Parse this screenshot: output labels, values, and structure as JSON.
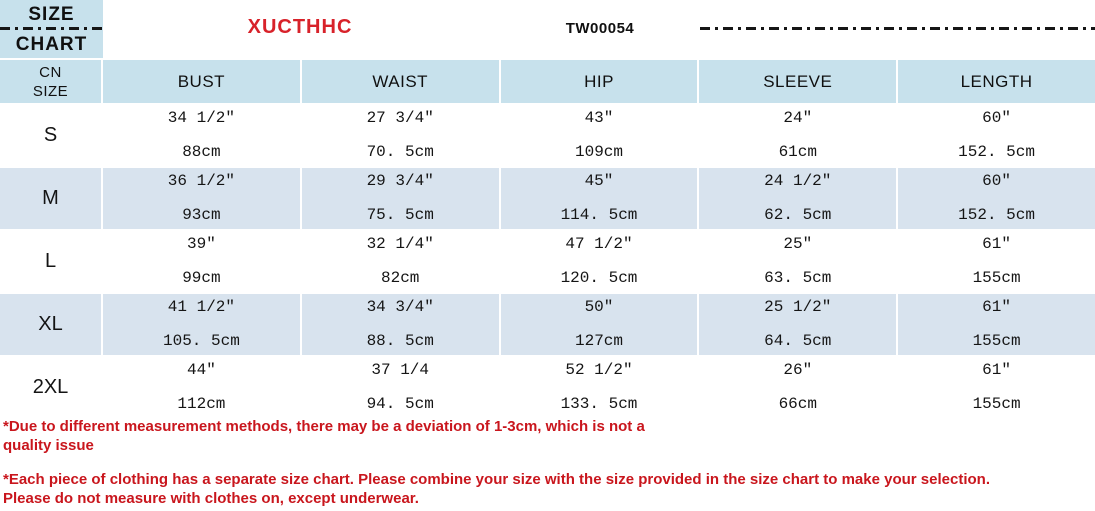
{
  "header": {
    "corner_line1": "SIZE",
    "corner_line2": "CHART",
    "brand": "XUCTHHC",
    "sku": "TW00054"
  },
  "colors": {
    "header_blue": "#c7e1ec",
    "row_blue": "#d8e3ee",
    "brand_red": "#d8222a",
    "note_red": "#c9161d",
    "line_black": "#161616"
  },
  "chart_data": {
    "type": "table",
    "title": "SIZE CHART",
    "label_header_line1": "CN",
    "label_header_line2": "SIZE",
    "columns": [
      "BUST",
      "WAIST",
      "HIP",
      "SLEEVE",
      "LENGTH"
    ],
    "rows": [
      {
        "label": "S",
        "bust": {
          "in": "34 1/2″",
          "cm": "88cm"
        },
        "waist": {
          "in": "27 3/4″",
          "cm": "70. 5cm"
        },
        "hip": {
          "in": "43″",
          "cm": "109cm"
        },
        "sleeve": {
          "in": "24″",
          "cm": "61cm"
        },
        "length": {
          "in": "60″",
          "cm": "152. 5cm"
        }
      },
      {
        "label": "M",
        "bust": {
          "in": "36 1/2″",
          "cm": "93cm"
        },
        "waist": {
          "in": "29 3/4″",
          "cm": "75. 5cm"
        },
        "hip": {
          "in": "45″",
          "cm": "114. 5cm"
        },
        "sleeve": {
          "in": "24 1/2″",
          "cm": "62. 5cm"
        },
        "length": {
          "in": "60″",
          "cm": "152. 5cm"
        }
      },
      {
        "label": "L",
        "bust": {
          "in": "39″",
          "cm": "99cm"
        },
        "waist": {
          "in": "32 1/4″",
          "cm": "82cm"
        },
        "hip": {
          "in": "47 1/2″",
          "cm": "120. 5cm"
        },
        "sleeve": {
          "in": "25″",
          "cm": "63. 5cm"
        },
        "length": {
          "in": "61″",
          "cm": "155cm"
        }
      },
      {
        "label": "XL",
        "bust": {
          "in": "41 1/2″",
          "cm": "105. 5cm"
        },
        "waist": {
          "in": "34 3/4″",
          "cm": "88. 5cm"
        },
        "hip": {
          "in": "50″",
          "cm": "127cm"
        },
        "sleeve": {
          "in": "25 1/2″",
          "cm": "64. 5cm"
        },
        "length": {
          "in": "61″",
          "cm": "155cm"
        }
      },
      {
        "label": "2XL",
        "bust": {
          "in": "44″",
          "cm": "112cm"
        },
        "waist": {
          "in": "37 1/4",
          "cm": "94. 5cm"
        },
        "hip": {
          "in": "52 1/2″",
          "cm": "133. 5cm"
        },
        "sleeve": {
          "in": "26″",
          "cm": "66cm"
        },
        "length": {
          "in": "61″",
          "cm": "155cm"
        }
      }
    ]
  },
  "notes": {
    "note1_line1": "*Due to different measurement methods, there may be a deviation of 1-3cm, which is not a",
    "note1_line2": "quality issue",
    "note2_line1": "*Each piece of clothing has a separate size chart. Please combine your size with the size provided in the size chart to make your selection.",
    "note2_line2": "Please do not measure with clothes on, except underwear."
  }
}
